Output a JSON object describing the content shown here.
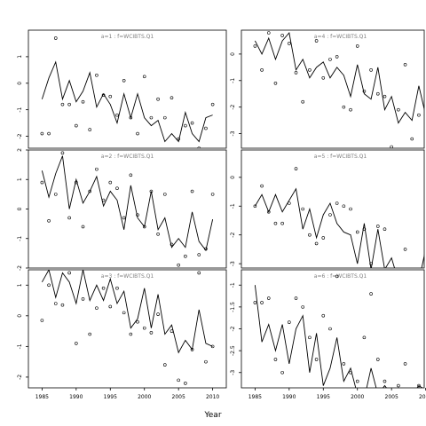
{
  "chart_data": {
    "type": "line",
    "xlabel": "Year",
    "x_ticks": [
      "1985",
      "1990",
      "1995",
      "2000",
      "2005",
      "2010"
    ],
    "panels": [
      {
        "title": "a=1  :  f=WCIBTS.Q1",
        "xlim": [
          1983,
          2012
        ],
        "ylim": [
          -2.45,
          2.0
        ],
        "y_ticks": [
          -2,
          -1,
          0,
          1
        ],
        "fitted": {
          "x": [
            1985,
            1986,
            1987,
            1988,
            1989,
            1990,
            1991,
            1992,
            1993,
            1994,
            1995,
            1996,
            1997,
            1998,
            1999,
            2000,
            2001,
            2002,
            2003,
            2004,
            2005,
            2006,
            2007,
            2008,
            2009,
            2010
          ],
          "y": [
            -0.6,
            0.2,
            0.8,
            -0.6,
            0.1,
            -0.7,
            -0.3,
            0.4,
            -0.9,
            -0.4,
            -0.8,
            -1.5,
            -0.4,
            -1.3,
            -0.4,
            -1.3,
            -1.6,
            -1.4,
            -2.2,
            -1.9,
            -2.2,
            -1.1,
            -1.9,
            -2.2,
            -1.3,
            -1.2
          ]
        },
        "observed": {
          "x": [
            1985,
            1986,
            1987,
            1988,
            1989,
            1990,
            1991,
            1992,
            1993,
            1994,
            1995,
            1996,
            1997,
            1998,
            1999,
            2000,
            2001,
            2002,
            2003,
            2004,
            2005,
            2006,
            2007,
            2008,
            2009,
            2010
          ],
          "y": [
            -1.9,
            -1.9,
            1.7,
            -0.8,
            -0.8,
            -1.6,
            -0.7,
            -1.75,
            0.3,
            -0.45,
            -0.5,
            -1.2,
            0.1,
            -1.3,
            -1.9,
            0.25,
            -1.3,
            -0.6,
            -1.3,
            -0.55,
            -2.1,
            -1.6,
            -1.5,
            -2.45,
            -1.7,
            -0.8
          ]
        }
      },
      {
        "title": "a=4  :  f=WCIBTS.Q1",
        "xlim": [
          1983,
          2012
        ],
        "ylim": [
          -3.55,
          0.9
        ],
        "y_ticks": [
          -3,
          -2,
          -1,
          0
        ],
        "fitted": {
          "x": [
            1985,
            1986,
            1987,
            1988,
            1989,
            1990,
            1991,
            1992,
            1993,
            1994,
            1995,
            1996,
            1997,
            1998,
            1999,
            2000,
            2001,
            2002,
            2003,
            2004,
            2005,
            2006,
            2007,
            2008,
            2009,
            2010
          ],
          "y": [
            0.5,
            0.0,
            0.6,
            -0.2,
            0.5,
            0.8,
            -0.6,
            -0.2,
            -0.9,
            -0.5,
            -0.3,
            -0.9,
            -0.5,
            -0.8,
            -1.6,
            -0.4,
            -1.5,
            -1.7,
            -0.5,
            -2.1,
            -1.6,
            -2.6,
            -2.2,
            -2.5,
            -1.2,
            -2.3
          ]
        },
        "observed": {
          "x": [
            1985,
            1986,
            1987,
            1988,
            1989,
            1990,
            1991,
            1992,
            1993,
            1994,
            1995,
            1996,
            1997,
            1998,
            1999,
            2000,
            2001,
            2002,
            2003,
            2004,
            2005,
            2006,
            2007,
            2008,
            2009,
            2010
          ],
          "y": [
            0.3,
            -0.6,
            0.8,
            -1.1,
            0.7,
            0.4,
            -0.7,
            -1.8,
            -0.6,
            0.5,
            -0.9,
            -0.2,
            -0.1,
            -2.0,
            -2.1,
            0.3,
            -1.4,
            -0.6,
            -1.5,
            -1.6,
            -3.5,
            -2.1,
            -0.4,
            -3.2,
            -2.3,
            -2.3
          ]
        }
      },
      {
        "title": "a=2  :  f=WCIBTS.Q1",
        "xlim": [
          1983,
          2012
        ],
        "ylim": [
          -2.0,
          2.0
        ],
        "y_ticks": [
          -2,
          -1,
          0,
          1,
          2
        ],
        "fitted": {
          "x": [
            1985,
            1986,
            1987,
            1988,
            1989,
            1990,
            1991,
            1992,
            1993,
            1994,
            1995,
            1996,
            1997,
            1998,
            1999,
            2000,
            2001,
            2002,
            2003,
            2004,
            2005,
            2006,
            2007,
            2008,
            2009,
            2010
          ],
          "y": [
            1.3,
            0.4,
            1.2,
            1.8,
            0.0,
            1.0,
            0.2,
            0.6,
            1.1,
            0.1,
            0.6,
            0.3,
            -0.7,
            0.8,
            -0.3,
            -0.6,
            0.6,
            -0.7,
            -0.3,
            -1.3,
            -1.0,
            -1.3,
            -0.1,
            -1.1,
            -1.4,
            -0.35
          ]
        },
        "observed": {
          "x": [
            1985,
            1986,
            1987,
            1988,
            1989,
            1990,
            1991,
            1992,
            1993,
            1994,
            1995,
            1996,
            1997,
            1998,
            1999,
            2000,
            2001,
            2002,
            2003,
            2004,
            2005,
            2006,
            2007,
            2008,
            2009,
            2010
          ],
          "y": [
            0.9,
            -0.4,
            0.5,
            1.9,
            -0.3,
            0.9,
            -0.6,
            0.6,
            1.35,
            0.3,
            0.9,
            0.7,
            -0.3,
            1.15,
            -0.2,
            -0.6,
            0.6,
            -0.85,
            0.5,
            -1.2,
            -1.9,
            -1.6,
            0.6,
            -1.55,
            -1.35,
            0.5
          ]
        }
      },
      {
        "title": "a=5  :  f=WCIBTS.Q1",
        "xlim": [
          1983,
          2012
        ],
        "ylim": [
          -3.15,
          0.95
        ],
        "y_ticks": [
          -3,
          -2,
          -1,
          0
        ],
        "fitted": {
          "x": [
            1985,
            1986,
            1987,
            1988,
            1989,
            1990,
            1991,
            1992,
            1993,
            1994,
            1995,
            1996,
            1997,
            1998,
            1999,
            2000,
            2001,
            2002,
            2003,
            2004,
            2005,
            2006,
            2007,
            2008,
            2009,
            2010
          ],
          "y": [
            -1.0,
            -0.6,
            -1.2,
            -0.6,
            -1.2,
            -0.8,
            -0.4,
            -1.8,
            -1.1,
            -2.1,
            -1.3,
            -0.9,
            -1.6,
            -1.9,
            -2.0,
            -3.0,
            -1.6,
            -3.2,
            -1.8,
            -3.2,
            -2.8,
            -3.6,
            -3.5,
            -3.3,
            -3.6,
            -2.5
          ]
        },
        "observed": {
          "x": [
            1985,
            1986,
            1987,
            1988,
            1989,
            1990,
            1991,
            1992,
            1993,
            1994,
            1995,
            1996,
            1997,
            1998,
            1999,
            2000,
            2001,
            2002,
            2003,
            2004,
            2005,
            2006,
            2007,
            2008,
            2009,
            2010
          ],
          "y": [
            -1.0,
            -0.3,
            -1.2,
            -1.6,
            -1.6,
            -0.9,
            0.3,
            -1.1,
            -2.0,
            -2.3,
            -2.1,
            -1.3,
            -0.9,
            -1.0,
            -1.1,
            -1.9,
            -1.8,
            -3.0,
            -1.7,
            -1.8,
            -3.5,
            -3.4,
            -2.5,
            -3.4,
            -3.3,
            -2.7
          ]
        }
      },
      {
        "title": "a=3  :  f=WCIBTS.Q1",
        "xlim": [
          1983,
          2012
        ],
        "ylim": [
          -2.35,
          1.5
        ],
        "y_ticks": [
          -2,
          -1,
          0,
          1
        ],
        "fitted": {
          "x": [
            1985,
            1986,
            1987,
            1988,
            1989,
            1990,
            1991,
            1992,
            1993,
            1994,
            1995,
            1996,
            1997,
            1998,
            1999,
            2000,
            2001,
            2002,
            2003,
            2004,
            2005,
            2006,
            2007,
            2008,
            2009,
            2010
          ],
          "y": [
            1.1,
            1.5,
            0.6,
            1.4,
            1.1,
            0.4,
            1.5,
            0.5,
            1.0,
            0.5,
            1.2,
            0.4,
            0.8,
            -0.4,
            -0.1,
            0.9,
            -0.4,
            0.7,
            -0.6,
            -0.3,
            -1.2,
            -0.8,
            -1.1,
            0.2,
            -0.9,
            -1.0
          ]
        },
        "observed": {
          "x": [
            1985,
            1986,
            1987,
            1988,
            1989,
            1990,
            1991,
            1992,
            1993,
            1994,
            1995,
            1996,
            1997,
            1998,
            1999,
            2000,
            2001,
            2002,
            2003,
            2004,
            2005,
            2006,
            2007,
            2008,
            2009,
            2010
          ],
          "y": [
            -0.15,
            1.0,
            0.4,
            0.35,
            1.4,
            -0.9,
            0.55,
            -0.6,
            0.25,
            0.9,
            0.3,
            0.9,
            0.1,
            -0.6,
            -0.2,
            -0.4,
            -0.55,
            0.05,
            -1.6,
            -0.5,
            -2.1,
            -2.2,
            -1.1,
            1.4,
            -1.5,
            -1.0
          ]
        }
      },
      {
        "title": "a=6  :  f=WCIBTS.Q1",
        "xlim": [
          1983,
          2012
        ],
        "ylim": [
          -3.35,
          -0.65
        ],
        "y_ticks": [
          -3.0,
          -2.5,
          -2.0,
          -1.5,
          -1.0
        ],
        "fitted": {
          "x": [
            1985,
            1986,
            1987,
            1988,
            1989,
            1990,
            1991,
            1992,
            1993,
            1994,
            1995,
            1996,
            1997,
            1998,
            1999,
            2000,
            2001,
            2002,
            2003,
            2004,
            2005,
            2006,
            2007,
            2008,
            2009,
            2010
          ],
          "y": [
            -1.0,
            -2.3,
            -1.9,
            -2.5,
            -1.9,
            -2.8,
            -2.0,
            -1.7,
            -3.0,
            -2.1,
            -3.3,
            -2.9,
            -2.2,
            -3.2,
            -2.9,
            -3.5,
            -3.6,
            -2.9,
            -3.5,
            -3.3,
            -3.5,
            -3.6,
            -3.4,
            -3.5,
            -3.3,
            -3.4
          ]
        },
        "observed": {
          "x": [
            1985,
            1986,
            1987,
            1988,
            1989,
            1990,
            1991,
            1992,
            1993,
            1994,
            1995,
            1996,
            1997,
            1998,
            1999,
            2000,
            2001,
            2002,
            2003,
            2004,
            2005,
            2006,
            2007,
            2008,
            2009,
            2010
          ],
          "y": [
            -1.4,
            -1.4,
            -1.3,
            -2.7,
            -3.0,
            -1.85,
            -1.3,
            -1.5,
            -2.2,
            -2.7,
            -1.7,
            -2.0,
            -0.8,
            -2.8,
            -3.0,
            -3.2,
            -2.2,
            -1.2,
            -2.7,
            -3.2,
            -3.5,
            -3.3,
            -2.8,
            -3.4,
            -3.3,
            -3.3
          ]
        }
      }
    ]
  }
}
